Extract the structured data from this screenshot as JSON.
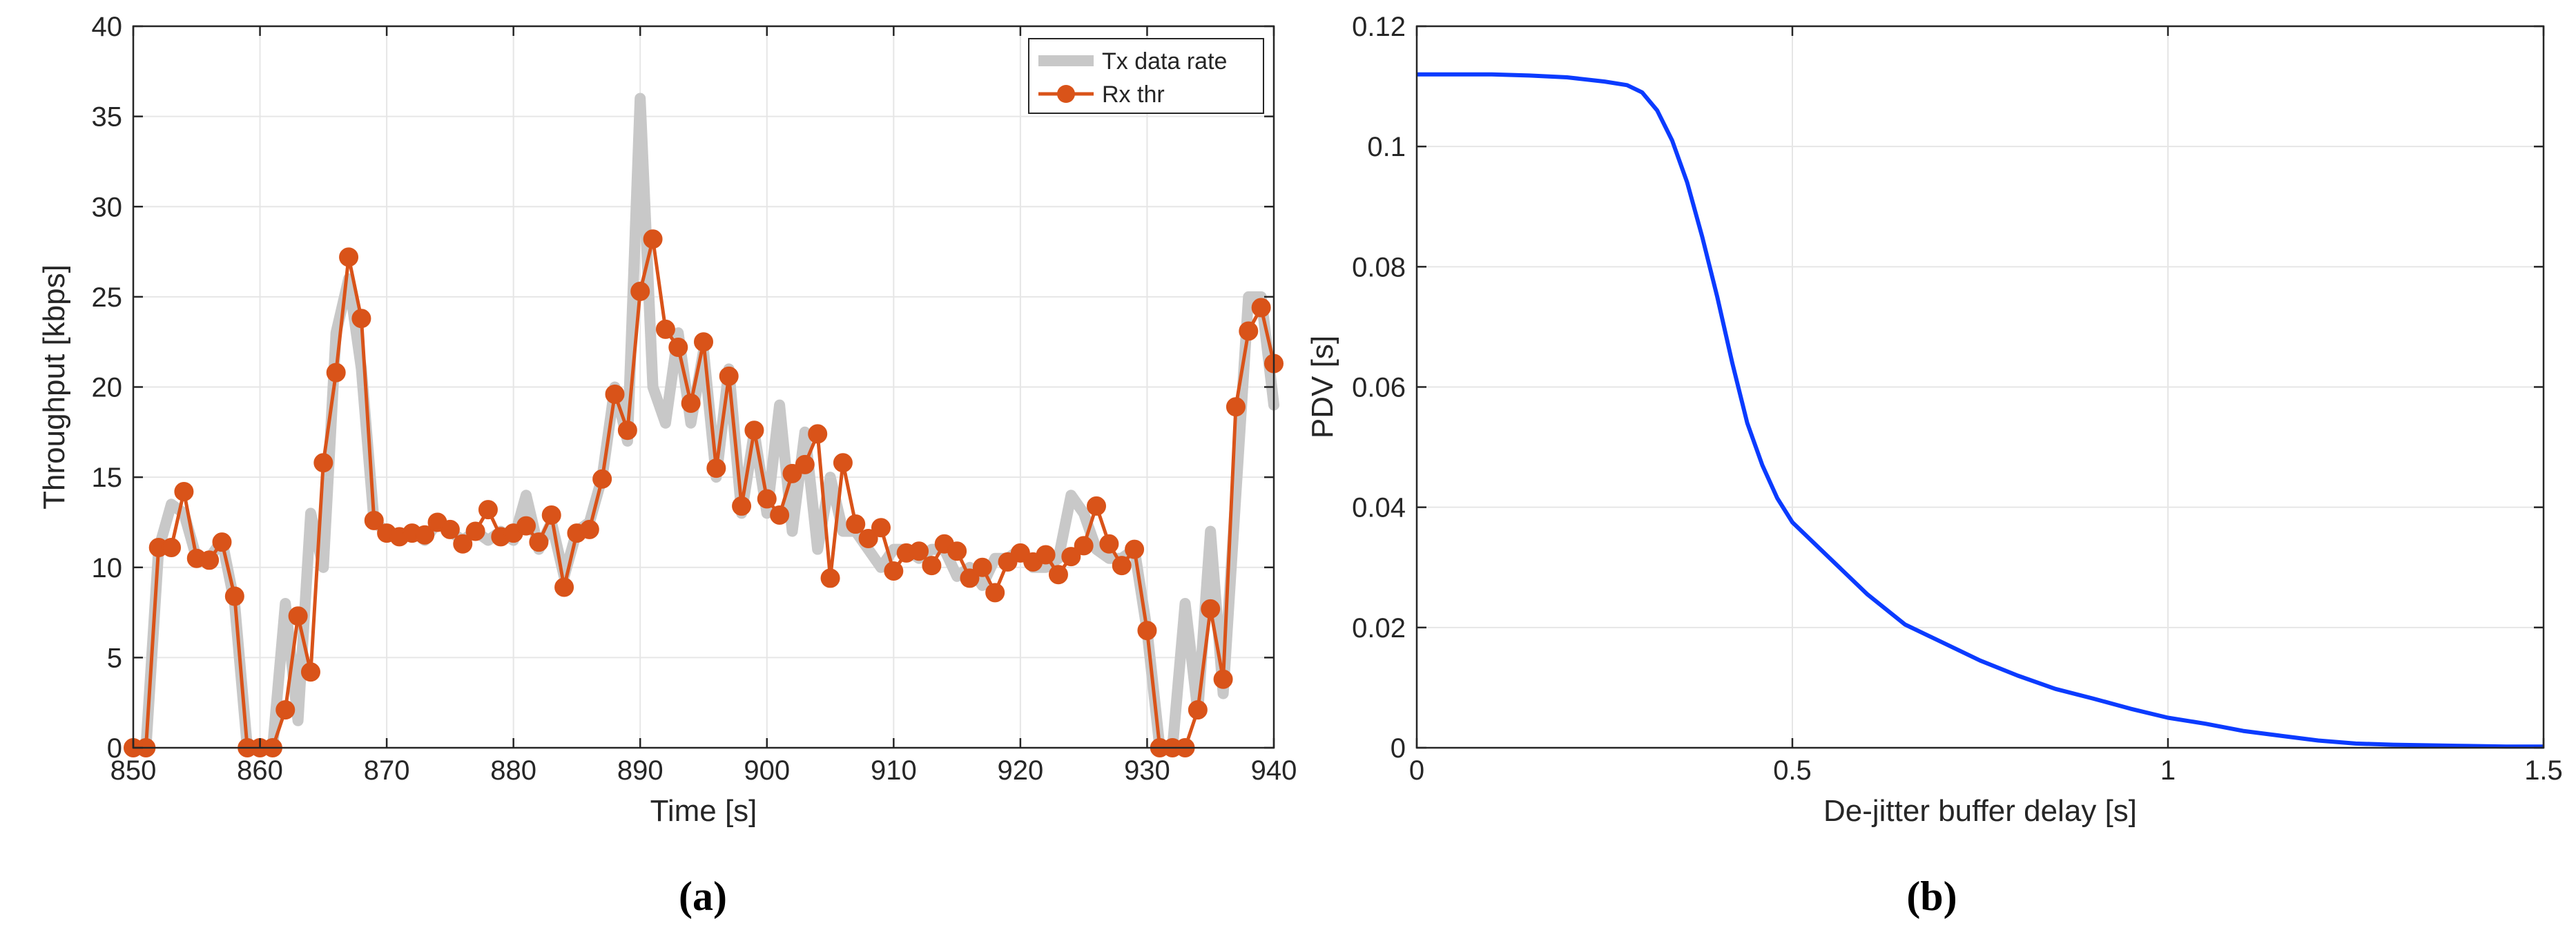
{
  "figure": {
    "captions": [
      "(a)",
      "(b)"
    ]
  },
  "chart_data": [
    {
      "type": "line",
      "xlabel": "Time [s]",
      "ylabel": "Throughput [kbps]",
      "xlim": [
        850,
        940
      ],
      "ylim": [
        0,
        40
      ],
      "xticks": [
        850,
        860,
        870,
        880,
        890,
        900,
        910,
        920,
        930,
        940
      ],
      "yticks": [
        0,
        5,
        10,
        15,
        20,
        25,
        30,
        35,
        40
      ],
      "grid": true,
      "legend_placement": "top-right",
      "series": [
        {
          "name": "Tx data rate",
          "color": "#c8c8c8",
          "style": "thick-line",
          "x": [
            850,
            851,
            852,
            853,
            854,
            855,
            856,
            857,
            858,
            859,
            860,
            861,
            862,
            863,
            864,
            865,
            866,
            867,
            868,
            869,
            870,
            871,
            872,
            873,
            874,
            875,
            876,
            877,
            878,
            879,
            880,
            881,
            882,
            883,
            884,
            885,
            886,
            887,
            888,
            889,
            890,
            891,
            892,
            893,
            894,
            895,
            896,
            897,
            898,
            899,
            900,
            901,
            902,
            903,
            904,
            905,
            906,
            907,
            908,
            909,
            910,
            911,
            912,
            913,
            914,
            915,
            916,
            917,
            918,
            919,
            920,
            921,
            922,
            923,
            924,
            925,
            926,
            927,
            928,
            929,
            930,
            931,
            932,
            933,
            934,
            935,
            936,
            937,
            938,
            939,
            940
          ],
          "y": [
            0,
            0,
            11,
            13.5,
            13,
            10.5,
            10.5,
            11.5,
            8,
            0,
            0,
            0,
            8,
            1.5,
            13,
            10,
            23,
            26,
            21,
            12.5,
            12,
            11.5,
            12,
            11.5,
            12.5,
            12,
            11.5,
            12,
            11.5,
            12,
            11.5,
            14,
            11,
            12.5,
            9.5,
            12,
            12.5,
            15,
            20,
            17,
            36,
            20,
            18,
            23,
            18,
            22,
            15,
            21,
            13,
            17.5,
            13,
            19,
            12,
            17.5,
            11,
            15,
            12,
            12,
            11,
            10,
            11,
            11,
            10.5,
            11,
            11,
            9.5,
            10,
            9,
            10.5,
            10.5,
            11,
            10,
            10,
            10.5,
            14,
            13,
            11,
            10.5,
            10.5,
            11,
            6.5,
            0,
            0,
            8,
            2,
            12,
            3,
            14,
            25,
            25,
            19
          ]
        },
        {
          "name": "Rx thr",
          "color": "#d95319",
          "style": "line-markers",
          "x": [
            850,
            851,
            852,
            853,
            854,
            855,
            856,
            857,
            858,
            859,
            860,
            861,
            862,
            863,
            864,
            865,
            866,
            867,
            868,
            869,
            870,
            871,
            872,
            873,
            874,
            875,
            876,
            877,
            878,
            879,
            880,
            881,
            882,
            883,
            884,
            885,
            886,
            887,
            888,
            889,
            890,
            891,
            892,
            893,
            894,
            895,
            896,
            897,
            898,
            899,
            900,
            901,
            902,
            903,
            904,
            905,
            906,
            907,
            908,
            909,
            910,
            911,
            912,
            913,
            914,
            915,
            916,
            917,
            918,
            919,
            920,
            921,
            922,
            923,
            924,
            925,
            926,
            927,
            928,
            929,
            930,
            931,
            932,
            933,
            934,
            935,
            936,
            937,
            938,
            939,
            940
          ],
          "y": [
            0,
            0,
            11.1,
            11.1,
            14.2,
            10.5,
            10.4,
            11.4,
            8.4,
            0,
            0,
            0,
            2.1,
            7.3,
            4.2,
            15.8,
            20.8,
            27.2,
            23.8,
            12.6,
            11.9,
            11.7,
            11.9,
            11.8,
            12.5,
            12.1,
            11.3,
            12.0,
            13.2,
            11.7,
            11.9,
            12.3,
            11.4,
            12.9,
            8.9,
            11.9,
            12.1,
            14.9,
            19.6,
            17.6,
            25.3,
            28.2,
            23.2,
            22.2,
            19.1,
            22.5,
            15.5,
            20.6,
            13.4,
            17.6,
            13.8,
            12.9,
            15.2,
            15.7,
            17.4,
            9.4,
            15.8,
            12.4,
            11.6,
            12.2,
            9.8,
            10.8,
            10.9,
            10.1,
            11.3,
            10.9,
            9.4,
            10.0,
            8.6,
            10.3,
            10.8,
            10.3,
            10.7,
            9.6,
            10.6,
            11.2,
            13.4,
            11.3,
            10.1,
            11.0,
            6.5,
            0,
            0,
            0,
            2.1,
            7.7,
            3.8,
            18.9,
            23.1,
            24.4,
            21.3
          ]
        }
      ]
    },
    {
      "type": "line",
      "xlabel": "De-jitter buffer delay [s]",
      "ylabel": "PDV [s]",
      "xlim": [
        0,
        1.5
      ],
      "ylim": [
        0,
        0.12
      ],
      "xticks": [
        0,
        0.5,
        1,
        1.5
      ],
      "xtick_labels": [
        "0",
        "0.5",
        "1",
        "1.5"
      ],
      "yticks": [
        0,
        0.02,
        0.04,
        0.06,
        0.08,
        0.1,
        0.12
      ],
      "ytick_labels": [
        "0",
        "0.02",
        "0.04",
        "0.06",
        "0.08",
        "0.1",
        "0.12"
      ],
      "grid": true,
      "series": [
        {
          "color": "#0b3bff",
          "x": [
            0,
            0.05,
            0.1,
            0.15,
            0.2,
            0.25,
            0.28,
            0.3,
            0.32,
            0.34,
            0.36,
            0.38,
            0.4,
            0.42,
            0.44,
            0.46,
            0.48,
            0.5,
            0.55,
            0.6,
            0.65,
            0.7,
            0.75,
            0.8,
            0.85,
            0.9,
            0.95,
            1.0,
            1.05,
            1.1,
            1.15,
            1.2,
            1.25,
            1.3,
            1.35,
            1.4,
            1.45,
            1.5
          ],
          "y": [
            0.112,
            0.112,
            0.112,
            0.1118,
            0.1115,
            0.1108,
            0.1102,
            0.109,
            0.106,
            0.101,
            0.094,
            0.085,
            0.075,
            0.064,
            0.054,
            0.047,
            0.0415,
            0.0375,
            0.0315,
            0.0255,
            0.0205,
            0.0175,
            0.0145,
            0.012,
            0.0098,
            0.0082,
            0.0065,
            0.005,
            0.004,
            0.0028,
            0.002,
            0.0012,
            0.0007,
            0.0005,
            0.0004,
            0.0003,
            0.0002,
            0.0002
          ]
        }
      ]
    }
  ]
}
